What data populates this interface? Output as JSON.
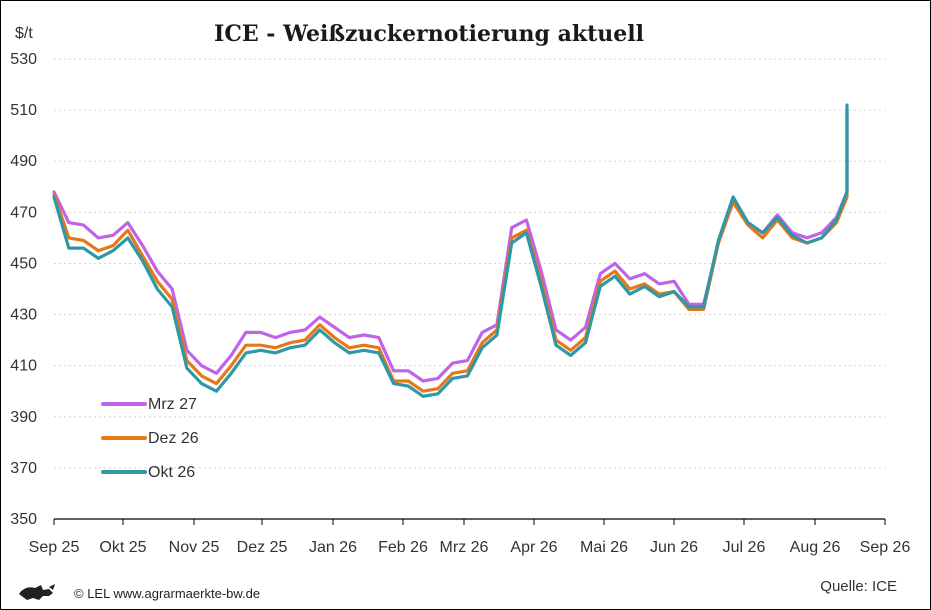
{
  "chart_data": {
    "type": "line",
    "title": "ICE - Weißzuckernotierung aktuell",
    "unit_label": "$/t",
    "ylim": [
      350,
      530
    ],
    "yticks": [
      350,
      370,
      390,
      410,
      430,
      450,
      470,
      490,
      510,
      530
    ],
    "grid": "horizontal-dotted",
    "legend_position": "left-middle",
    "x_month_labels": [
      "Sep 25",
      "Okt 25",
      "Nov 25",
      "Dez 25",
      "Jan 26",
      "Feb 26",
      "Mrz 26",
      "Apr 26",
      "Mai 26",
      "Jun 26",
      "Jul 26",
      "Aug 26",
      "Sep 26"
    ],
    "x": [
      "2025-09-01",
      "2025-09-08",
      "2025-09-15",
      "2025-09-22",
      "2025-09-29",
      "2025-10-06",
      "2025-10-13",
      "2025-10-20",
      "2025-10-27",
      "2025-11-03",
      "2025-11-10",
      "2025-11-17",
      "2025-11-24",
      "2025-12-01",
      "2025-12-08",
      "2025-12-15",
      "2025-12-22",
      "2025-12-29",
      "2026-01-05",
      "2026-01-12",
      "2026-01-19",
      "2026-01-26",
      "2026-02-02",
      "2026-02-09",
      "2026-02-16",
      "2026-02-23",
      "2026-03-02",
      "2026-03-09",
      "2026-03-16",
      "2026-03-23",
      "2026-03-30",
      "2026-04-06",
      "2026-04-13",
      "2026-04-20",
      "2026-04-27",
      "2026-05-04",
      "2026-05-11",
      "2026-05-18",
      "2026-05-25",
      "2026-06-01",
      "2026-06-08",
      "2026-06-15",
      "2026-06-22",
      "2026-06-29",
      "2026-07-06",
      "2026-07-13",
      "2026-07-20",
      "2026-07-27",
      "2026-08-03",
      "2026-08-10",
      "2026-08-17",
      "2026-08-24"
    ],
    "series": [
      {
        "name": "Mrz 27",
        "color": "#c063e8",
        "values": [
          478,
          466,
          465,
          460,
          461,
          466,
          457,
          447,
          440,
          416,
          410,
          407,
          414,
          423,
          423,
          421,
          423,
          424,
          429,
          425,
          421,
          422,
          421,
          408,
          408,
          404,
          405,
          411,
          412,
          423,
          426,
          464,
          467,
          447,
          424,
          420,
          425,
          446,
          450,
          444,
          446,
          442,
          443,
          434,
          434,
          458,
          474,
          466,
          462,
          469,
          462,
          460
        ]
      },
      {
        "name": "Dez 26",
        "color": "#e8761a",
        "values": [
          477,
          460,
          459,
          455,
          457,
          463,
          453,
          443,
          436,
          412,
          406,
          403,
          410,
          418,
          418,
          417,
          419,
          420,
          426,
          421,
          417,
          418,
          417,
          404,
          404,
          400,
          401,
          407,
          408,
          419,
          424,
          460,
          463,
          443,
          420,
          416,
          421,
          443,
          447,
          440,
          442,
          438,
          439,
          432,
          432,
          458,
          474,
          465,
          460,
          467,
          460,
          458
        ]
      },
      {
        "name": "Okt 26",
        "color": "#2e98a5",
        "values": [
          476,
          456,
          456,
          452,
          455,
          460,
          451,
          440,
          433,
          409,
          403,
          400,
          407,
          415,
          416,
          415,
          417,
          418,
          424,
          419,
          415,
          416,
          415,
          403,
          402,
          398,
          399,
          405,
          406,
          417,
          422,
          458,
          462,
          441,
          418,
          414,
          419,
          441,
          445,
          438,
          441,
          437,
          439,
          433,
          433,
          459,
          476,
          466,
          462,
          468,
          461,
          458
        ]
      }
    ],
    "tail_values": {
      "dates": [
        "2026-08-31",
        "2026-09-07",
        "2026-09-14",
        "2026-09-21",
        "2026-09-28",
        "2026-10-05"
      ],
      "Mrz 27": [
        462,
        468,
        478,
        504,
        508,
        510
      ],
      "Dez 26": [
        460,
        466,
        476,
        502,
        506,
        509
      ],
      "Okt 26": [
        460,
        467,
        478,
        505,
        510,
        512
      ]
    }
  },
  "footer": {
    "copyright": "© LEL www.agrarmaerkte-bw.de",
    "source": "Quelle: ICE"
  },
  "logo_icon": "lion-emblem-icon"
}
